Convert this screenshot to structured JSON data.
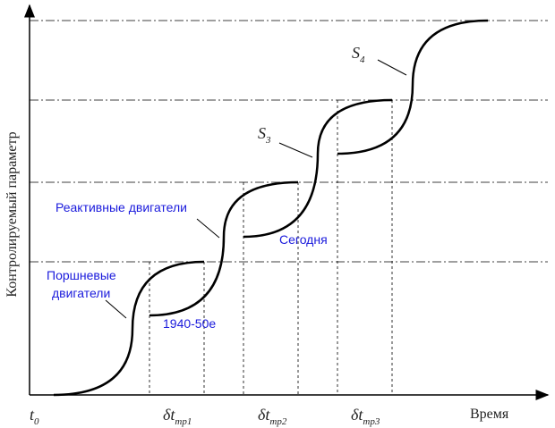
{
  "y_axis_label": "Контролируемый параметр",
  "x_axis_label": "Время",
  "origin_label": {
    "main": "t",
    "sub": "0"
  },
  "intervals": [
    {
      "main": "δt",
      "sub": "тр1"
    },
    {
      "main": "δt",
      "sub": "тр2"
    },
    {
      "main": "δt",
      "sub": "тр3"
    }
  ],
  "curve_labels": [
    {
      "main": "S",
      "sub": "3"
    },
    {
      "main": "S",
      "sub": "4"
    }
  ],
  "annotations": {
    "piston": [
      "Поршневые",
      "двигатели"
    ],
    "jet": "Реактивные двигатели",
    "era": "1940-50е",
    "today": "Сегодня"
  }
}
